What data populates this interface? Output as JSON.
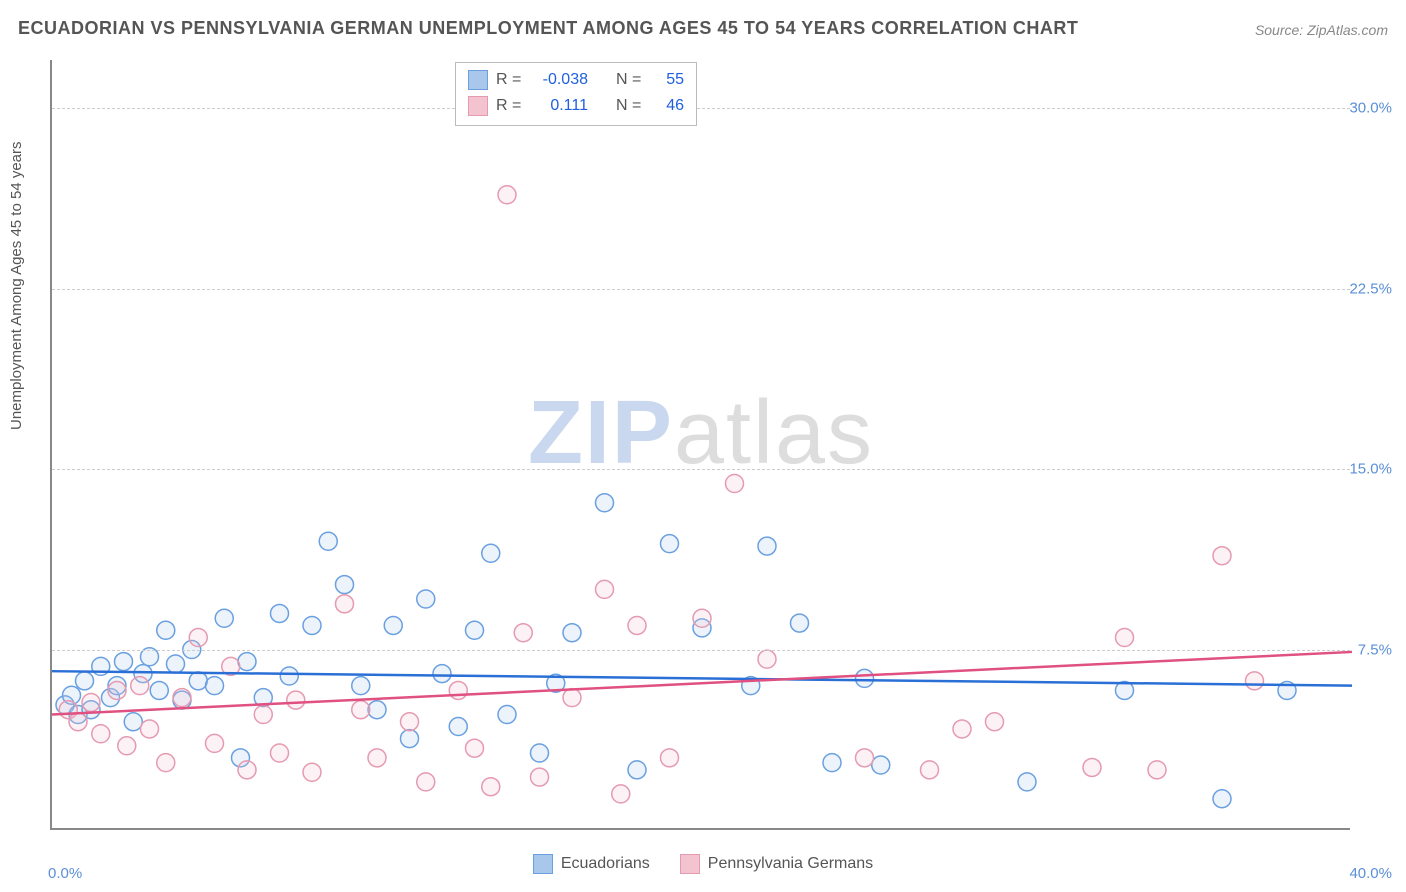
{
  "title": "ECUADORIAN VS PENNSYLVANIA GERMAN UNEMPLOYMENT AMONG AGES 45 TO 54 YEARS CORRELATION CHART",
  "source": "Source: ZipAtlas.com",
  "y_axis_label": "Unemployment Among Ages 45 to 54 years",
  "watermark": {
    "zip": "ZIP",
    "atlas": "atlas"
  },
  "chart": {
    "type": "scatter",
    "background_color": "#ffffff",
    "grid_color": "#cccccc",
    "axis_color": "#888888",
    "xlim": [
      0,
      40
    ],
    "ylim": [
      0,
      32
    ],
    "x_ticks": [
      {
        "v": 0,
        "label": "0.0%"
      },
      {
        "v": 40,
        "label": "40.0%"
      }
    ],
    "y_gridlines": [
      7.5,
      15.0,
      22.5,
      30.0
    ],
    "y_tick_labels": [
      {
        "v": 7.5,
        "label": "7.5%"
      },
      {
        "v": 15.0,
        "label": "15.0%"
      },
      {
        "v": 22.5,
        "label": "22.5%"
      },
      {
        "v": 30.0,
        "label": "30.0%"
      }
    ],
    "marker_radius": 9,
    "marker_stroke_width": 1.5,
    "marker_fill_opacity": 0.22,
    "trend_line_width": 2.5,
    "series": [
      {
        "name": "Ecuadorians",
        "color_stroke": "#6aa0e0",
        "color_fill": "#a8c7eb",
        "trend_color": "#2a6fd6",
        "R": "-0.038",
        "N": "55",
        "trend": {
          "x1": 0,
          "y1": 6.6,
          "x2": 40,
          "y2": 6.0
        },
        "points": [
          [
            0.4,
            5.2
          ],
          [
            0.6,
            5.6
          ],
          [
            0.8,
            4.8
          ],
          [
            1.0,
            6.2
          ],
          [
            1.2,
            5.0
          ],
          [
            1.5,
            6.8
          ],
          [
            1.8,
            5.5
          ],
          [
            2.0,
            6.0
          ],
          [
            2.2,
            7.0
          ],
          [
            2.5,
            4.5
          ],
          [
            2.8,
            6.5
          ],
          [
            3.0,
            7.2
          ],
          [
            3.3,
            5.8
          ],
          [
            3.5,
            8.3
          ],
          [
            3.8,
            6.9
          ],
          [
            4.0,
            5.4
          ],
          [
            4.3,
            7.5
          ],
          [
            4.5,
            6.2
          ],
          [
            5.0,
            6.0
          ],
          [
            5.3,
            8.8
          ],
          [
            5.8,
            3.0
          ],
          [
            6.0,
            7.0
          ],
          [
            6.5,
            5.5
          ],
          [
            7.0,
            9.0
          ],
          [
            7.3,
            6.4
          ],
          [
            8.0,
            8.5
          ],
          [
            8.5,
            12.0
          ],
          [
            9.0,
            10.2
          ],
          [
            9.5,
            6.0
          ],
          [
            10.0,
            5.0
          ],
          [
            10.5,
            8.5
          ],
          [
            11.0,
            3.8
          ],
          [
            11.5,
            9.6
          ],
          [
            12.0,
            6.5
          ],
          [
            12.5,
            4.3
          ],
          [
            13.0,
            8.3
          ],
          [
            13.5,
            11.5
          ],
          [
            14.0,
            4.8
          ],
          [
            15.0,
            3.2
          ],
          [
            15.5,
            6.1
          ],
          [
            16.0,
            8.2
          ],
          [
            17.0,
            13.6
          ],
          [
            18.0,
            2.5
          ],
          [
            19.0,
            11.9
          ],
          [
            20.0,
            8.4
          ],
          [
            21.5,
            6.0
          ],
          [
            22.0,
            11.8
          ],
          [
            23.0,
            8.6
          ],
          [
            24.0,
            2.8
          ],
          [
            25.0,
            6.3
          ],
          [
            25.5,
            2.7
          ],
          [
            30.0,
            2.0
          ],
          [
            33.0,
            5.8
          ],
          [
            36.0,
            1.3
          ],
          [
            38.0,
            5.8
          ]
        ]
      },
      {
        "name": "Pennsylvania Germans",
        "color_stroke": "#e59ab0",
        "color_fill": "#f3c3d0",
        "trend_color": "#e05080",
        "R": "0.111",
        "N": "46",
        "trend": {
          "x1": 0,
          "y1": 4.8,
          "x2": 40,
          "y2": 7.4
        },
        "points": [
          [
            0.5,
            5.0
          ],
          [
            0.8,
            4.5
          ],
          [
            1.2,
            5.3
          ],
          [
            1.5,
            4.0
          ],
          [
            2.0,
            5.8
          ],
          [
            2.3,
            3.5
          ],
          [
            2.7,
            6.0
          ],
          [
            3.0,
            4.2
          ],
          [
            3.5,
            2.8
          ],
          [
            4.0,
            5.5
          ],
          [
            4.5,
            8.0
          ],
          [
            5.0,
            3.6
          ],
          [
            5.5,
            6.8
          ],
          [
            6.0,
            2.5
          ],
          [
            6.5,
            4.8
          ],
          [
            7.0,
            3.2
          ],
          [
            7.5,
            5.4
          ],
          [
            8.0,
            2.4
          ],
          [
            9.0,
            9.4
          ],
          [
            9.5,
            5.0
          ],
          [
            10.0,
            3.0
          ],
          [
            11.0,
            4.5
          ],
          [
            11.5,
            2.0
          ],
          [
            12.5,
            5.8
          ],
          [
            13.0,
            3.4
          ],
          [
            13.5,
            1.8
          ],
          [
            14.0,
            26.4
          ],
          [
            14.5,
            8.2
          ],
          [
            15.0,
            2.2
          ],
          [
            16.0,
            5.5
          ],
          [
            17.0,
            10.0
          ],
          [
            17.5,
            1.5
          ],
          [
            18.0,
            8.5
          ],
          [
            19.0,
            3.0
          ],
          [
            20.0,
            8.8
          ],
          [
            21.0,
            14.4
          ],
          [
            22.0,
            7.1
          ],
          [
            25.0,
            3.0
          ],
          [
            27.0,
            2.5
          ],
          [
            28.0,
            4.2
          ],
          [
            29.0,
            4.5
          ],
          [
            32.0,
            2.6
          ],
          [
            33.0,
            8.0
          ],
          [
            34.0,
            2.5
          ],
          [
            36.0,
            11.4
          ],
          [
            37.0,
            6.2
          ]
        ]
      }
    ]
  },
  "stats_box": {
    "rows": [
      {
        "swatch_fill": "#a8c7eb",
        "swatch_stroke": "#6aa0e0",
        "r_label": "R =",
        "r_val": "-0.038",
        "n_label": "N =",
        "n_val": "55"
      },
      {
        "swatch_fill": "#f3c3d0",
        "swatch_stroke": "#e59ab0",
        "r_label": "R =",
        "r_val": "0.111",
        "n_label": "N =",
        "n_val": "46"
      }
    ]
  },
  "bottom_legend": [
    {
      "swatch_fill": "#a8c7eb",
      "swatch_stroke": "#6aa0e0",
      "label": "Ecuadorians"
    },
    {
      "swatch_fill": "#f3c3d0",
      "swatch_stroke": "#e59ab0",
      "label": "Pennsylvania Germans"
    }
  ]
}
